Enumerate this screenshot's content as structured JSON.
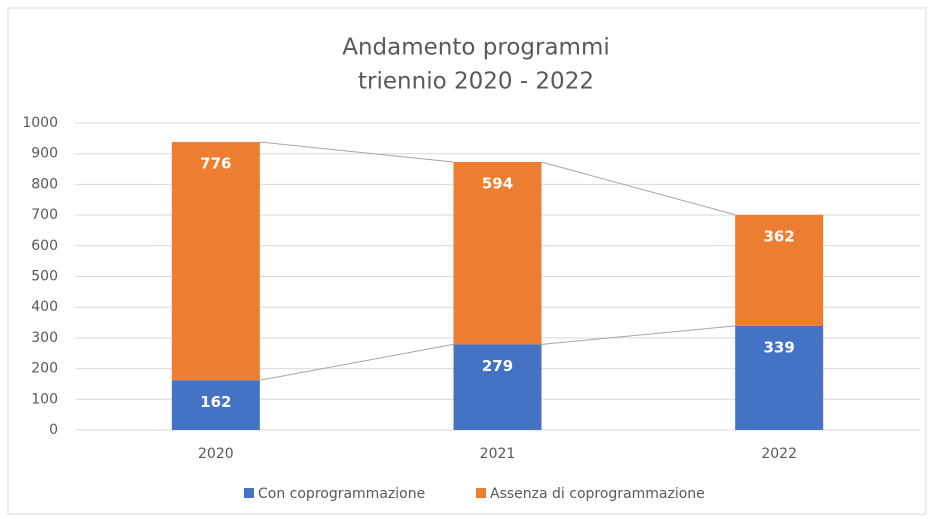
{
  "chart_data": {
    "type": "stacked_bar",
    "title": [
      "Andamento programmi",
      "triennio 2020 - 2022"
    ],
    "categories": [
      "2020",
      "2021",
      "2022"
    ],
    "series": [
      {
        "name": "Con coprogrammazione",
        "color": "#4472c4",
        "values": [
          162,
          279,
          339
        ]
      },
      {
        "name": "Assenza di coprogrammazione",
        "color": "#ed7d31",
        "values": [
          776,
          594,
          362
        ]
      }
    ],
    "ylim": [
      0,
      1000
    ],
    "yticks": [
      0,
      100,
      200,
      300,
      400,
      500,
      600,
      700,
      800,
      900,
      1000
    ],
    "grid": true,
    "series_lines": true,
    "legend": "bottom"
  }
}
